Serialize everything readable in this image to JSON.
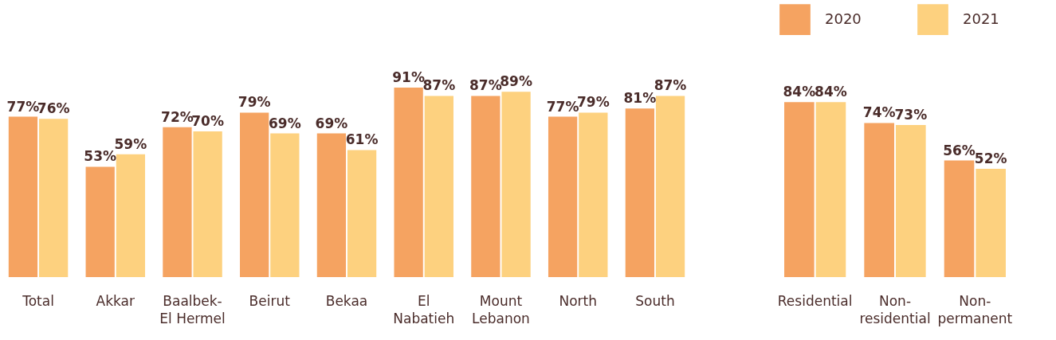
{
  "chart_data": [
    {
      "type": "bar",
      "categories": [
        "Total",
        "Akkar",
        "Baalbek-El Hermel",
        "Beirut",
        "Bekaa",
        "El Nabatieh",
        "Mount Lebanon",
        "North",
        "South"
      ],
      "tick_labels": "x",
      "legend": false,
      "series": [
        {
          "color": "#f5a361",
          "values": [
            77,
            53,
            72,
            79,
            69,
            91,
            87,
            77,
            81
          ],
          "value_labels": [
            "77%",
            "53%",
            "72%",
            "79%",
            "69%",
            "91%",
            "87%",
            "77%",
            "81%"
          ]
        },
        {
          "color": "#fdd17f",
          "values": [
            76,
            59,
            70,
            69,
            61,
            87,
            89,
            79,
            87
          ],
          "value_labels": [
            "76%",
            "59%",
            "70%",
            "69%",
            "61%",
            "87%",
            "89%",
            "79%",
            "87%"
          ]
        }
      ]
    },
    {
      "type": "bar",
      "categories": [
        "Residential",
        "Non-residential",
        "Non-permanent"
      ],
      "tick_labels": "x",
      "legend": "top right",
      "series": [
        {
          "name": "2020",
          "color": "#f5a361",
          "values": [
            84,
            74,
            56
          ],
          "value_labels": [
            "84%",
            "74%",
            "56%"
          ]
        },
        {
          "name": "2021",
          "color": "#fdd17f",
          "values": [
            84,
            73,
            52
          ],
          "value_labels": [
            "84%",
            "73%",
            "52%"
          ]
        }
      ]
    }
  ]
}
